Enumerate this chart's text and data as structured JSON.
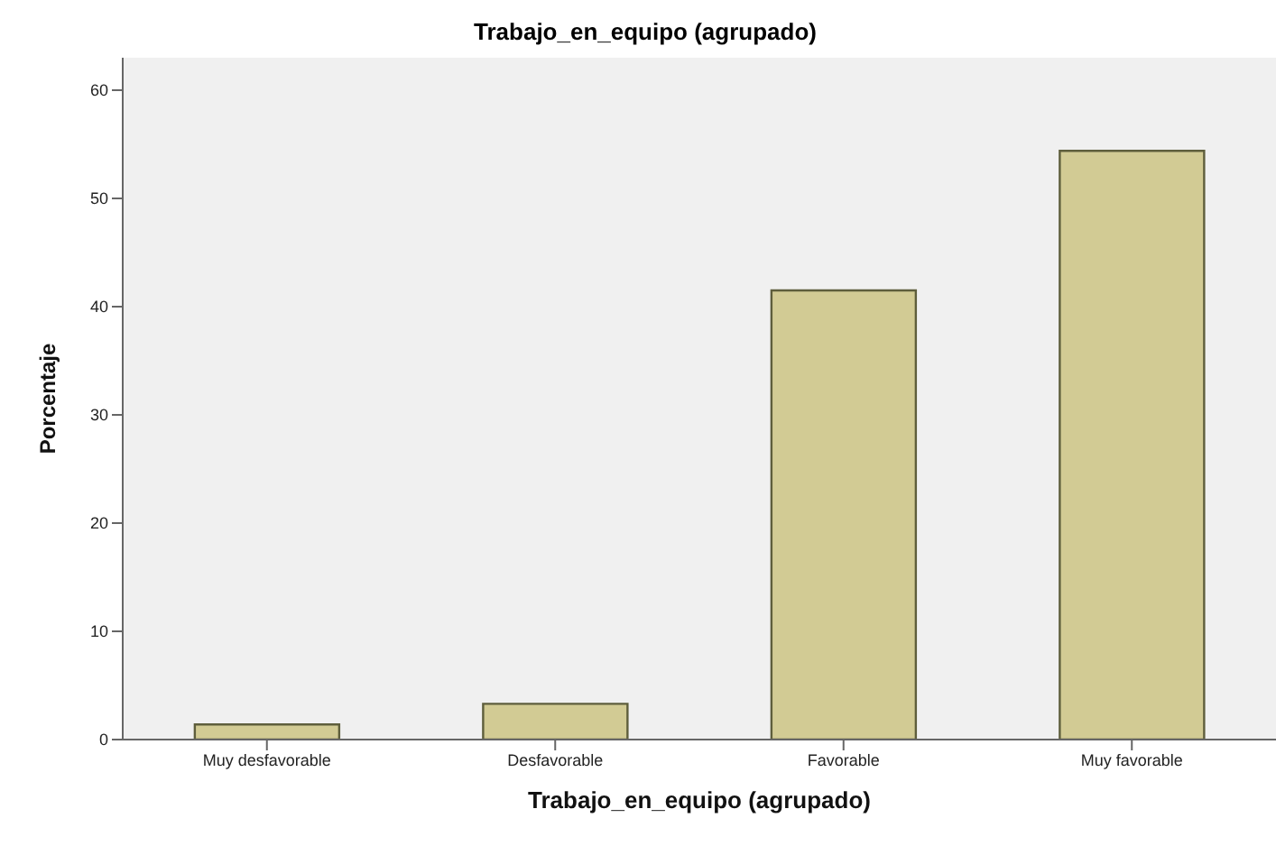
{
  "chart_data": {
    "type": "bar",
    "title": "Trabajo_en_equipo (agrupado)",
    "xlabel": "Trabajo_en_equipo (agrupado)",
    "ylabel": "Porcentaje",
    "categories": [
      "Muy desfavorable",
      "Desfavorable",
      "Favorable",
      "Muy favorable"
    ],
    "values": [
      1.4,
      3.3,
      41.5,
      54.4
    ],
    "color": "#d2cb94",
    "ylim": [
      0,
      63
    ],
    "yticks": [
      0,
      10,
      20,
      30,
      40,
      50,
      60
    ],
    "grid": false,
    "legend": false
  }
}
